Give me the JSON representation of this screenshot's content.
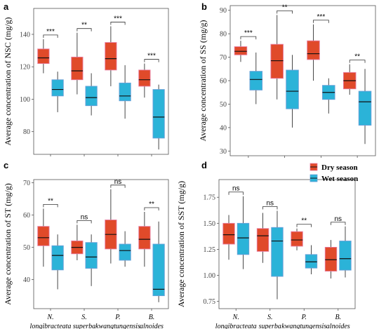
{
  "colors": {
    "dry": "#E04A2A",
    "wet": "#2BB3D8",
    "dryEdge": "#E87CA0",
    "wetEdge": "#6A9FD8",
    "frame": "#555555",
    "grid": "#ffffff",
    "tickText": "#444444"
  },
  "categories": [
    {
      "top": "N.",
      "bottom": "longibracteata"
    },
    {
      "top": "S.",
      "bottom": "superba"
    },
    {
      "top": "P.",
      "bottom": "kwangtungensis"
    },
    {
      "top": "B.",
      "bottom": "alnoides"
    }
  ],
  "legend": [
    {
      "label": "Dry season",
      "key": "dry"
    },
    {
      "label": "Wet season",
      "key": "wet"
    }
  ],
  "chart_data": [
    {
      "id": "a",
      "type": "boxplot",
      "letter": "a",
      "ylabel": "Average concentration of NSC (mg/g)",
      "ylim": [
        66,
        156
      ],
      "yticks": [
        80,
        100,
        120,
        140
      ],
      "ytick_labels": [
        "80",
        "100",
        "120",
        "140"
      ],
      "series": [
        {
          "key": "dry",
          "name": "Dry season",
          "boxes": [
            {
              "min": 116,
              "q1": 122,
              "median": 125.5,
              "q3": 131,
              "max": 137
            },
            {
              "min": 103,
              "q1": 112,
              "median": 117.5,
              "q3": 126,
              "max": 141
            },
            {
              "min": 108,
              "q1": 118,
              "median": 125,
              "q3": 135,
              "max": 145
            },
            {
              "min": 101,
              "q1": 108,
              "median": 112,
              "q3": 118,
              "max": 122
            }
          ]
        },
        {
          "key": "wet",
          "name": "Wet season",
          "boxes": [
            {
              "min": 92,
              "q1": 102,
              "median": 106,
              "q3": 112,
              "max": 117
            },
            {
              "min": 90,
              "q1": 96,
              "median": 101,
              "q3": 108,
              "max": 116
            },
            {
              "min": 88,
              "q1": 99,
              "median": 102,
              "q3": 110,
              "max": 121
            },
            {
              "min": 69,
              "q1": 76,
              "median": 89,
              "q3": 106,
              "max": 109
            }
          ]
        }
      ],
      "significance": [
        "***",
        "**",
        "***",
        "***"
      ]
    },
    {
      "id": "b",
      "type": "boxplot",
      "letter": "b",
      "ylabel": "Average concentration of SS (mg/g)",
      "ylim": [
        28,
        92
      ],
      "yticks": [
        30,
        40,
        50,
        60,
        70,
        80,
        90
      ],
      "ytick_labels": [
        "30",
        "40",
        "50",
        "60",
        "70",
        "80",
        "90"
      ],
      "series": [
        {
          "key": "dry",
          "name": "Dry season",
          "boxes": [
            {
              "min": 68,
              "q1": 71,
              "median": 72.5,
              "q3": 74.5,
              "max": 77
            },
            {
              "min": 52,
              "q1": 61,
              "median": 68.5,
              "q3": 75.5,
              "max": 88
            },
            {
              "min": 60,
              "q1": 69,
              "median": 71.5,
              "q3": 77,
              "max": 84
            },
            {
              "min": 54,
              "q1": 56.5,
              "median": 60,
              "q3": 63.5,
              "max": 67
            }
          ]
        },
        {
          "key": "wet",
          "name": "Wet season",
          "boxes": [
            {
              "min": 50,
              "q1": 56,
              "median": 60.5,
              "q3": 64,
              "max": 72
            },
            {
              "min": 40,
              "q1": 48,
              "median": 55.5,
              "q3": 64.5,
              "max": 71
            },
            {
              "min": 46,
              "q1": 52,
              "median": 55,
              "q3": 58,
              "max": 61
            },
            {
              "min": 33,
              "q1": 41,
              "median": 51,
              "q3": 55.5,
              "max": 65
            }
          ]
        }
      ],
      "significance": [
        "***",
        "**",
        "***",
        "**"
      ]
    },
    {
      "id": "c",
      "type": "boxplot",
      "letter": "c",
      "ylabel": "Average concentration of ST (mg/g)",
      "ylim": [
        31,
        71
      ],
      "yticks": [
        40,
        50,
        60,
        70
      ],
      "ytick_labels": [
        "40",
        "50",
        "60",
        "70"
      ],
      "series": [
        {
          "key": "dry",
          "name": "Dry season",
          "boxes": [
            {
              "min": 44,
              "q1": 50.5,
              "median": 53,
              "q3": 56.5,
              "max": 62
            },
            {
              "min": 46,
              "q1": 48,
              "median": 50,
              "q3": 52,
              "max": 57
            },
            {
              "min": 45,
              "q1": 49.5,
              "median": 54,
              "q3": 58.5,
              "max": 68
            },
            {
              "min": 44,
              "q1": 49.5,
              "median": 52.5,
              "q3": 56.5,
              "max": 61
            }
          ]
        },
        {
          "key": "wet",
          "name": "Wet season",
          "boxes": [
            {
              "min": 37,
              "q1": 43,
              "median": 47.5,
              "q3": 50.5,
              "max": 54
            },
            {
              "min": 38,
              "q1": 43.5,
              "median": 47,
              "q3": 51.5,
              "max": 54
            },
            {
              "min": 44,
              "q1": 46,
              "median": 49,
              "q3": 51,
              "max": 55
            },
            {
              "min": 33,
              "q1": 35,
              "median": 37,
              "q3": 51,
              "max": 58
            }
          ]
        }
      ],
      "significance": [
        "**",
        "ns",
        "ns",
        "**"
      ]
    },
    {
      "id": "d",
      "type": "boxplot",
      "letter": "d",
      "ylabel": "Average concentration of SST (mg/g)",
      "ylim": [
        0.68,
        1.92
      ],
      "yticks": [
        0.75,
        1.0,
        1.25,
        1.5,
        1.75
      ],
      "ytick_labels": [
        "0.75",
        "1.00",
        "1.25",
        "1.50",
        "1.75"
      ],
      "series": [
        {
          "key": "dry",
          "name": "Dry season",
          "boxes": [
            {
              "min": 1.15,
              "q1": 1.3,
              "median": 1.39,
              "q3": 1.5,
              "max": 1.58
            },
            {
              "min": 1.12,
              "q1": 1.23,
              "median": 1.38,
              "q3": 1.45,
              "max": 1.6
            },
            {
              "min": 1.24,
              "q1": 1.28,
              "median": 1.34,
              "q3": 1.42,
              "max": 1.45
            },
            {
              "min": 0.97,
              "q1": 1.04,
              "median": 1.15,
              "q3": 1.27,
              "max": 1.34
            }
          ]
        },
        {
          "key": "wet",
          "name": "Wet season",
          "boxes": [
            {
              "min": 1.06,
              "q1": 1.2,
              "median": 1.36,
              "q3": 1.5,
              "max": 1.76
            },
            {
              "min": 0.77,
              "q1": 0.99,
              "median": 1.33,
              "q3": 1.46,
              "max": 1.62
            },
            {
              "min": 1.01,
              "q1": 1.07,
              "median": 1.13,
              "q3": 1.2,
              "max": 1.29
            },
            {
              "min": 0.98,
              "q1": 1.05,
              "median": 1.16,
              "q3": 1.33,
              "max": 1.47
            }
          ]
        }
      ],
      "significance": [
        "ns",
        "ns",
        "**",
        "ns"
      ]
    }
  ]
}
